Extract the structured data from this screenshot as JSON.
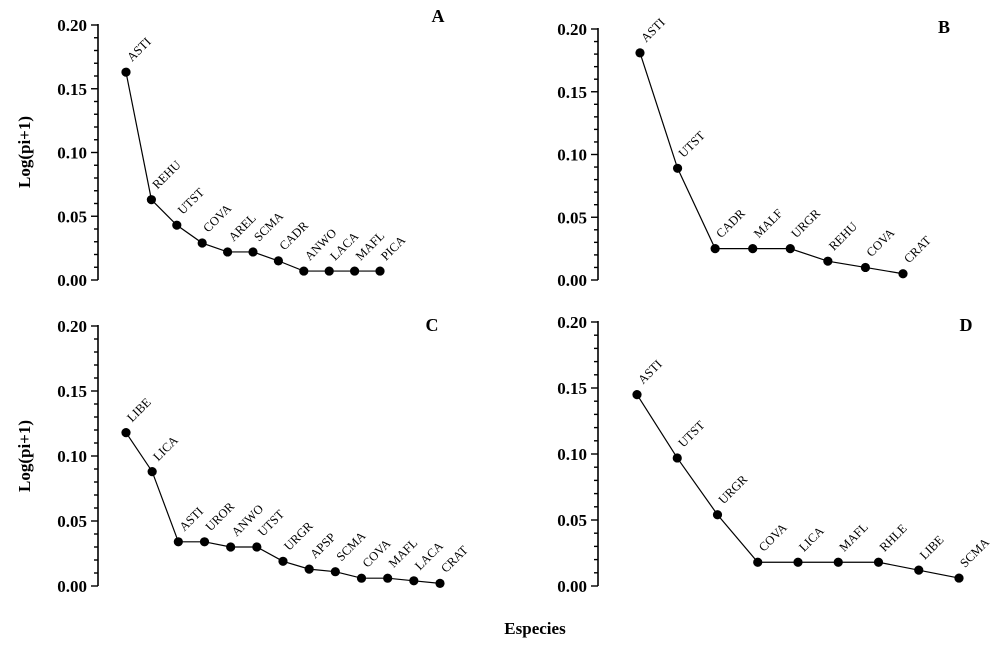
{
  "figure": {
    "xlabel": "Especies"
  },
  "chart_data": [
    {
      "type": "line",
      "panel": "A",
      "ylabel": "Log(pi+1)",
      "ylim": [
        0,
        0.2
      ],
      "yticks": [
        "0.00",
        "0.05",
        "0.10",
        "0.15",
        "0.20"
      ],
      "categories": [
        "ASTI",
        "REHU",
        "UTST",
        "COVA",
        "AREL",
        "SCMA",
        "CADR",
        "ANWO",
        "LACA",
        "MAFL",
        "PICA"
      ],
      "values": [
        0.163,
        0.063,
        0.043,
        0.029,
        0.022,
        0.022,
        0.015,
        0.007,
        0.007,
        0.007,
        0.007
      ]
    },
    {
      "type": "line",
      "panel": "B",
      "ylabel": "",
      "ylim": [
        0,
        0.2
      ],
      "yticks": [
        "0.00",
        "0.05",
        "0.10",
        "0.15",
        "0.20"
      ],
      "categories": [
        "ASTI",
        "UTST",
        "CADR",
        "MALF",
        "URGR",
        "REHU",
        "COVA",
        "CRAT"
      ],
      "values": [
        0.181,
        0.089,
        0.025,
        0.025,
        0.025,
        0.015,
        0.01,
        0.005
      ]
    },
    {
      "type": "line",
      "panel": "C",
      "ylabel": "Log(pi+1)",
      "ylim": [
        0,
        0.2
      ],
      "yticks": [
        "0.00",
        "0.05",
        "0.10",
        "0.15",
        "0.20"
      ],
      "categories": [
        "LIBE",
        "LICA",
        "ASTI",
        "UROR",
        "ANWO",
        "UTST",
        "URGR",
        "APSP",
        "SCMA",
        "COVA",
        "MAFL",
        "LACA",
        "CRAT"
      ],
      "values": [
        0.118,
        0.088,
        0.034,
        0.034,
        0.03,
        0.03,
        0.019,
        0.013,
        0.011,
        0.006,
        0.006,
        0.004,
        0.002
      ]
    },
    {
      "type": "line",
      "panel": "D",
      "ylabel": "",
      "ylim": [
        0,
        0.2
      ],
      "yticks": [
        "0.00",
        "0.05",
        "0.10",
        "0.15",
        "0.20"
      ],
      "categories": [
        "ASTI",
        "UTST",
        "URGR",
        "COVA",
        "LICA",
        "MAFL",
        "RHLE",
        "LIBE",
        "SCMA"
      ],
      "values": [
        0.145,
        0.097,
        0.054,
        0.018,
        0.018,
        0.018,
        0.018,
        0.012,
        0.006
      ]
    }
  ]
}
